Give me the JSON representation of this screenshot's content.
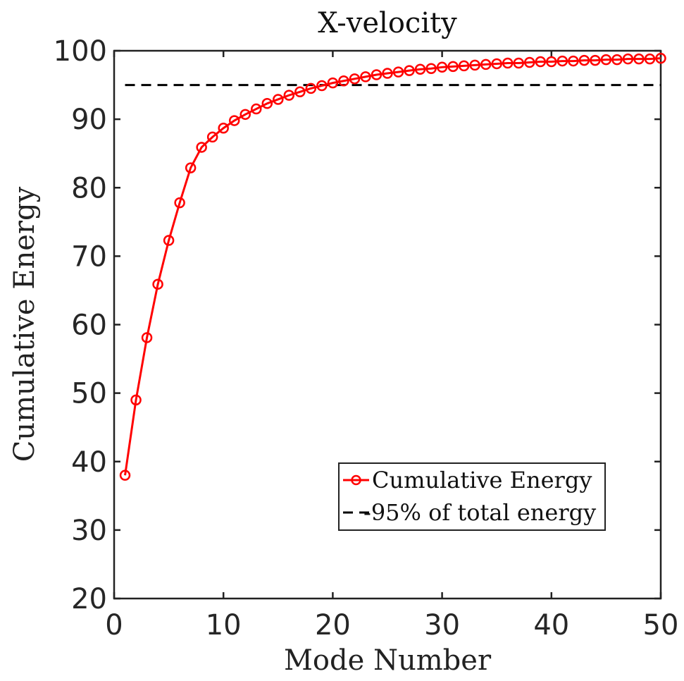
{
  "chart_data": {
    "type": "line",
    "title": "X-velocity",
    "xlabel": "Mode Number",
    "ylabel": "Cumulative Energy",
    "xlim": [
      0,
      50
    ],
    "ylim": [
      20,
      100
    ],
    "xticks": [
      0,
      10,
      20,
      30,
      40,
      50
    ],
    "yticks": [
      20,
      30,
      40,
      50,
      60,
      70,
      80,
      90,
      100
    ],
    "xtick_labels": [
      "0",
      "10",
      "20",
      "30",
      "40",
      "50"
    ],
    "ytick_labels": [
      "20",
      "30",
      "40",
      "50",
      "60",
      "70",
      "80",
      "90",
      "100"
    ],
    "grid": false,
    "legend_position": "bottom-right",
    "series": [
      {
        "name": "Cumulative Energy",
        "color": "#ff0000",
        "style": "solid-line-circle-markers",
        "x": [
          1,
          2,
          3,
          4,
          5,
          6,
          7,
          8,
          9,
          10,
          11,
          12,
          13,
          14,
          15,
          16,
          17,
          18,
          19,
          20,
          21,
          22,
          23,
          24,
          25,
          26,
          27,
          28,
          29,
          30,
          31,
          32,
          33,
          34,
          35,
          36,
          37,
          38,
          39,
          40,
          41,
          42,
          43,
          44,
          45,
          46,
          47,
          48,
          49,
          50
        ],
        "y": [
          38.0,
          49.0,
          58.1,
          65.9,
          72.3,
          77.8,
          82.9,
          85.9,
          87.4,
          88.7,
          89.8,
          90.7,
          91.5,
          92.3,
          92.9,
          93.5,
          94.0,
          94.5,
          94.9,
          95.3,
          95.6,
          95.9,
          96.2,
          96.5,
          96.7,
          96.9,
          97.1,
          97.3,
          97.4,
          97.6,
          97.7,
          97.8,
          97.9,
          98.0,
          98.1,
          98.2,
          98.2,
          98.3,
          98.4,
          98.4,
          98.5,
          98.5,
          98.6,
          98.6,
          98.7,
          98.7,
          98.8,
          98.8,
          98.8,
          98.9
        ]
      },
      {
        "name": "-95% of total energy",
        "color": "#000000",
        "style": "dashed-line",
        "x": [
          1,
          50
        ],
        "y": [
          95,
          95
        ]
      }
    ]
  }
}
